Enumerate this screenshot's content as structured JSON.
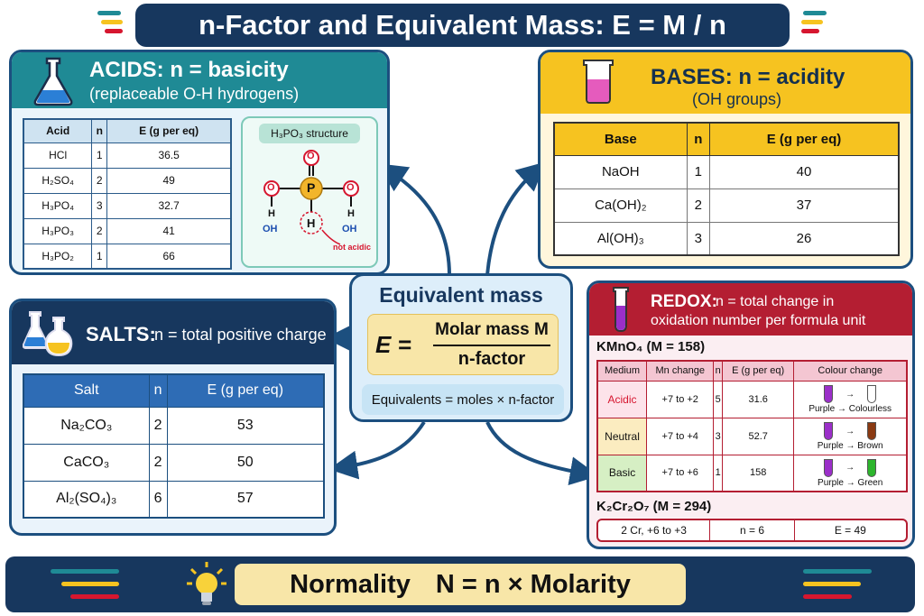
{
  "title": "n-Factor and Equivalent Mass: E = M / n",
  "acids": {
    "title": "ACIDS: n = basicity",
    "subtitle": "(replaceable O-H hydrogens)",
    "headers": [
      "Acid",
      "n",
      "E (g per eq)"
    ],
    "rows": [
      [
        "HCl",
        "1",
        "36.5"
      ],
      [
        "H₂SO₄",
        "2",
        "49"
      ],
      [
        "H₃PO₄",
        "3",
        "32.7"
      ],
      [
        "H₃PO₃",
        "2",
        "41"
      ],
      [
        "H₃PO₂",
        "1",
        "66"
      ]
    ],
    "structure": {
      "title": "H₃PO₃ structure",
      "atom_p": "P",
      "atom_o": "O",
      "atom_h": "H",
      "oh": "OH",
      "not_acidic": "not acidic"
    }
  },
  "bases": {
    "title": "BASES: n = acidity",
    "subtitle": "(OH groups)",
    "headers": [
      "Base",
      "n",
      "E (g per eq)"
    ],
    "rows": [
      [
        "NaOH",
        "1",
        "40"
      ],
      [
        "Ca(OH)₂",
        "2",
        "37"
      ],
      [
        "Al(OH)₃",
        "3",
        "26"
      ]
    ]
  },
  "salts": {
    "title": "SALTS:",
    "title_rest": "n = total positive charge",
    "headers": [
      "Salt",
      "n",
      "E (g per eq)"
    ],
    "rows": [
      [
        "Na₂CO₃",
        "2",
        "53"
      ],
      [
        "CaCO₃",
        "2",
        "50"
      ],
      [
        "Al₂(SO₄)₃",
        "6",
        "57"
      ]
    ]
  },
  "center": {
    "title": "Equivalent mass",
    "lhs": "E =",
    "numerator": "Molar mass M",
    "denominator": "n-factor",
    "equivalents": "Equivalents = moles × n-factor"
  },
  "redox": {
    "title_a": "REDOX:",
    "title_b": "n = total change in",
    "title_c": "oxidation number per formula unit",
    "kmno4_label": "KMnO₄  (M = 158)",
    "headers": [
      "Medium",
      "Mn change",
      "n",
      "E (g per eq)",
      "Colour change"
    ],
    "rows": [
      {
        "medium": "Acidic",
        "change": "+7 to +2",
        "n": "5",
        "e": "31.6",
        "colour": "Purple → Colourless",
        "end_color": "#ffffff",
        "medium_color": "#d6162f",
        "bg": "#fde3ea"
      },
      {
        "medium": "Neutral",
        "change": "+7 to +4",
        "n": "3",
        "e": "52.7",
        "colour": "Purple → Brown",
        "end_color": "#8a3a12",
        "medium_color": "#111111",
        "bg": "#fbecc0"
      },
      {
        "medium": "Basic",
        "change": "+7 to +6",
        "n": "1",
        "e": "158",
        "colour": "Purple → Green",
        "end_color": "#2db52d",
        "medium_color": "#111111",
        "bg": "#d6efc4"
      }
    ],
    "arrow": "→",
    "k2cr2o7_label": "K₂Cr₂O₇  (M = 294)",
    "k2cr2o7_cells": [
      "2 Cr, +6 to +3",
      "n = 6",
      "E = 49"
    ]
  },
  "normality": {
    "label": "Normality",
    "formula": "N = n × Molarity"
  },
  "colors": {
    "navy": "#17375e",
    "teal": "#1f8a95",
    "yellow": "#f6c320",
    "red": "#b41e32",
    "purple": "#9b2fc9",
    "pink": "#e55bbd"
  }
}
